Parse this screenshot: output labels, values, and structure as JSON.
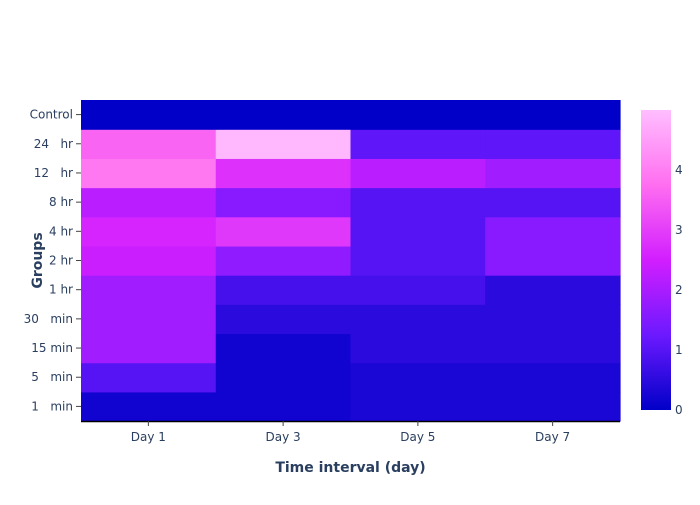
{
  "chart_data": {
    "type": "heatmap",
    "xlabel": "Time interval (day)",
    "ylabel": "Groups",
    "x": [
      "Day 1",
      "Day 3",
      "Day 5",
      "Day 7"
    ],
    "y": [
      "1   min",
      "5   min",
      "15 min",
      "30   min",
      "1 hr",
      "2 hr",
      "4 hr",
      "8 hr",
      "12   hr",
      "24   hr",
      "Control"
    ],
    "z": [
      [
        0.2,
        0.2,
        0.3,
        0.3
      ],
      [
        1.0,
        0.2,
        0.3,
        0.3
      ],
      [
        1.9,
        0.2,
        0.5,
        0.5
      ],
      [
        1.9,
        0.5,
        0.5,
        0.5
      ],
      [
        1.9,
        0.8,
        0.8,
        0.5
      ],
      [
        2.4,
        1.7,
        1.0,
        1.6
      ],
      [
        2.6,
        2.9,
        1.0,
        1.6
      ],
      [
        2.2,
        1.6,
        1.0,
        1.0
      ],
      [
        3.9,
        2.8,
        2.2,
        1.9
      ],
      [
        3.6,
        4.9,
        1.1,
        1.1
      ],
      [
        0.0,
        0.0,
        0.0,
        0.0
      ]
    ],
    "zrange": [
      0,
      5
    ],
    "colorscale": [
      "#0000c8",
      "#6c19ff",
      "#d21eff",
      "#ff6ef0",
      "#ffbeff"
    ],
    "colorbar": {
      "ticks": [
        "0",
        "1",
        "2",
        "3",
        "4"
      ]
    },
    "axis_color": "#2a3f5f",
    "grid": false
  }
}
